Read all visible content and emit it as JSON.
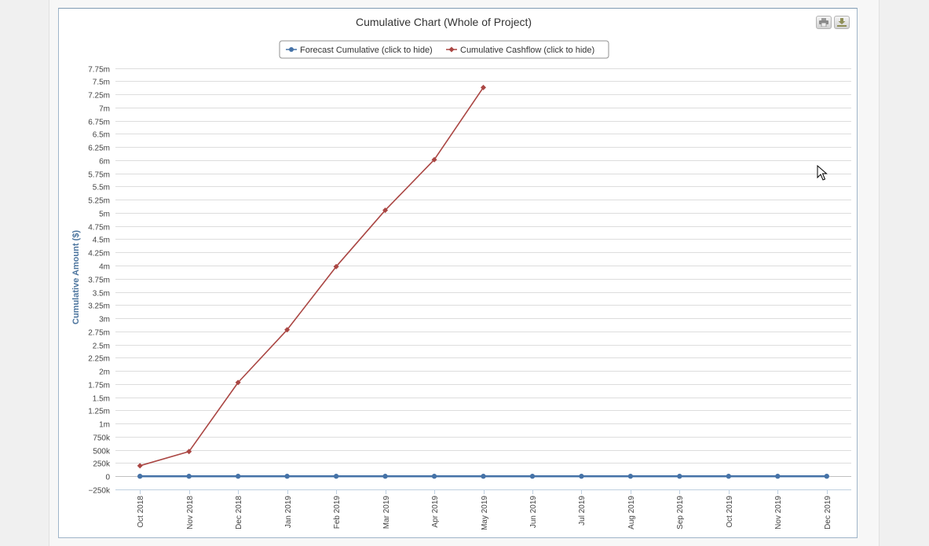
{
  "chart_data": {
    "type": "line",
    "title": "Cumulative Chart (Whole of Project)",
    "ylabel": "Cumulative Amount ($)",
    "xlabel": "",
    "categories": [
      "Oct 2018",
      "Nov 2018",
      "Dec 2018",
      "Jan 2019",
      "Feb 2019",
      "Mar 2019",
      "Apr 2019",
      "May 2019",
      "Jun 2019",
      "Jul 2019",
      "Aug 2019",
      "Sep 2019",
      "Oct 2019",
      "Nov 2019",
      "Dec 2019"
    ],
    "ylim": [
      -250000,
      7750000
    ],
    "yticks": [
      -250000,
      0,
      250000,
      500000,
      750000,
      1000000,
      1250000,
      1500000,
      1750000,
      2000000,
      2250000,
      2500000,
      2750000,
      3000000,
      3250000,
      3500000,
      3750000,
      4000000,
      4250000,
      4500000,
      4750000,
      5000000,
      5250000,
      5500000,
      5750000,
      6000000,
      6250000,
      6500000,
      6750000,
      7000000,
      7250000,
      7500000,
      7750000
    ],
    "ytick_labels": [
      "−250k",
      "0",
      "250k",
      "500k",
      "750k",
      "1m",
      "1.25m",
      "1.5m",
      "1.75m",
      "2m",
      "2.25m",
      "2.5m",
      "2.75m",
      "3m",
      "3.25m",
      "3.5m",
      "3.75m",
      "4m",
      "4.25m",
      "4.5m",
      "4.75m",
      "5m",
      "5.25m",
      "5.5m",
      "5.75m",
      "6m",
      "6.25m",
      "6.5m",
      "6.75m",
      "7m",
      "7.25m",
      "7.5m",
      "7.75m"
    ],
    "grid": true,
    "legend_position": "top-center",
    "series": [
      {
        "name": "Forecast Cumulative (click to hide)",
        "color": "#4572a7",
        "marker": "circle",
        "values": [
          0,
          0,
          0,
          0,
          0,
          0,
          0,
          0,
          0,
          0,
          0,
          0,
          0,
          0,
          0
        ]
      },
      {
        "name": "Cumulative Cashflow (click to hide)",
        "color": "#aa4643",
        "marker": "diamond",
        "values": [
          200000,
          470000,
          1780000,
          2780000,
          3980000,
          5050000,
          6010000,
          7380000,
          null,
          null,
          null,
          null,
          null,
          null,
          null
        ]
      }
    ]
  },
  "toolbar": {
    "print_icon": "printer-icon",
    "download_icon": "download-icon"
  }
}
